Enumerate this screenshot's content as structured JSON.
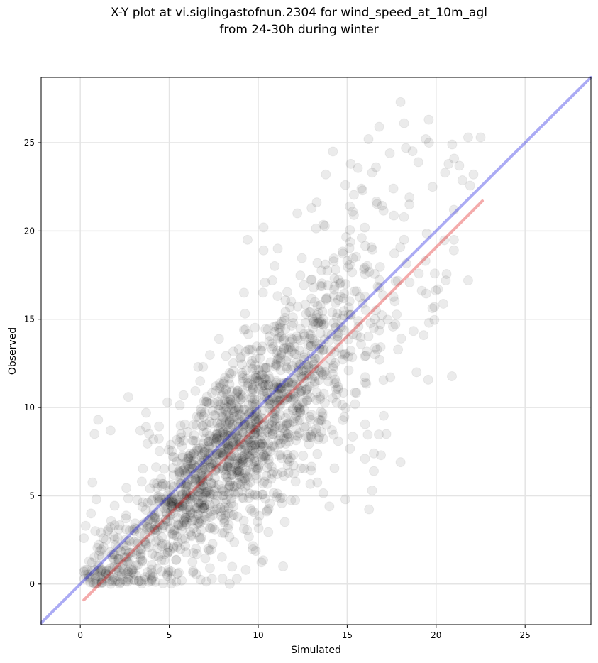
{
  "chart_data": {
    "type": "scatter",
    "title_line1": "X-Y plot at vi.siglingastofnun.2304 for wind_speed_at_10m_agl",
    "title_line2": "from 24-30h during winter",
    "xlabel": "Simulated",
    "ylabel": "Observed",
    "xlim": [
      -2.2,
      28.7
    ],
    "ylim": [
      -2.3,
      28.7
    ],
    "xticks": [
      0,
      5,
      10,
      15,
      20,
      25
    ],
    "yticks": [
      0,
      5,
      10,
      15,
      20,
      25
    ],
    "grid": true,
    "identity_line": {
      "x": [
        -2.2,
        28.7
      ],
      "y": [
        -2.2,
        28.7
      ],
      "color": "#0000dd"
    },
    "fit_line": {
      "x": [
        0.2,
        22.6
      ],
      "y": [
        -0.9,
        21.7
      ],
      "color": "#dd0000"
    },
    "marker_color": "#000000",
    "points_description_seed": 2304,
    "points_count": 1800,
    "points": [
      [
        18.0,
        27.3
      ],
      [
        18.2,
        26.1
      ],
      [
        16.8,
        25.9
      ],
      [
        16.2,
        25.2
      ],
      [
        21.8,
        25.3
      ],
      [
        22.5,
        25.3
      ],
      [
        19.6,
        25.0
      ],
      [
        20.9,
        24.9
      ],
      [
        14.2,
        24.5
      ],
      [
        18.3,
        24.7
      ],
      [
        17.4,
        24.4
      ],
      [
        15.2,
        23.8
      ],
      [
        19.0,
        23.9
      ],
      [
        21.3,
        23.7
      ],
      [
        22.1,
        23.2
      ],
      [
        20.7,
        23.8
      ],
      [
        13.8,
        23.2
      ],
      [
        16.4,
        23.3
      ],
      [
        19.8,
        22.5
      ],
      [
        20.5,
        23.3
      ],
      [
        17.6,
        22.4
      ],
      [
        18.5,
        21.9
      ],
      [
        15.8,
        22.4
      ],
      [
        14.9,
        22.6
      ],
      [
        21.0,
        21.2
      ],
      [
        21.0,
        19.5
      ],
      [
        21.0,
        18.9
      ],
      [
        21.8,
        17.2
      ],
      [
        20.1,
        16.7
      ],
      [
        19.6,
        14.8
      ],
      [
        18.5,
        21.5
      ],
      [
        19.4,
        18.3
      ],
      [
        19.9,
        15.7
      ],
      [
        18.9,
        12.0
      ],
      [
        19.3,
        14.1
      ],
      [
        16.5,
        7.4
      ],
      [
        18.0,
        6.9
      ],
      [
        16.4,
        5.3
      ],
      [
        17.2,
        8.5
      ],
      [
        16.5,
        6.4
      ],
      [
        16.9,
        7.3
      ],
      [
        16.0,
        7.1
      ],
      [
        14.9,
        4.8
      ],
      [
        14.0,
        4.4
      ],
      [
        11.4,
        1.0
      ],
      [
        9.3,
        0.8
      ],
      [
        8.4,
        0.0
      ],
      [
        8.8,
        0.3
      ],
      [
        7.4,
        0.3
      ],
      [
        5.1,
        0.3
      ],
      [
        4.1,
        0.4
      ],
      [
        5.7,
        0.2
      ],
      [
        1.0,
        9.3
      ],
      [
        0.8,
        8.5
      ],
      [
        1.7,
        8.7
      ],
      [
        2.7,
        10.6
      ],
      [
        3.7,
        9.7
      ],
      [
        3.7,
        8.9
      ],
      [
        4.9,
        10.3
      ],
      [
        5.8,
        10.7
      ],
      [
        6.9,
        12.3
      ],
      [
        8.6,
        12.5
      ],
      [
        8.9,
        13.3
      ],
      [
        9.2,
        14.4
      ],
      [
        10.3,
        18.9
      ],
      [
        10.3,
        20.2
      ],
      [
        9.4,
        19.5
      ],
      [
        9.2,
        16.5
      ],
      [
        10.8,
        17.2
      ],
      [
        11.1,
        19.0
      ],
      [
        12.2,
        21.0
      ],
      [
        13.0,
        21.3
      ],
      [
        0.2,
        0.7
      ],
      [
        0.3,
        3.3
      ],
      [
        0.2,
        2.6
      ],
      [
        0.5,
        1.3
      ],
      [
        0.9,
        4.8
      ],
      [
        0.6,
        4.0
      ],
      [
        1.3,
        2.1
      ],
      [
        1.7,
        0.9
      ],
      [
        2.6,
        1.5
      ],
      [
        2.9,
        0.8
      ],
      [
        3.4,
        1.4
      ]
    ]
  }
}
